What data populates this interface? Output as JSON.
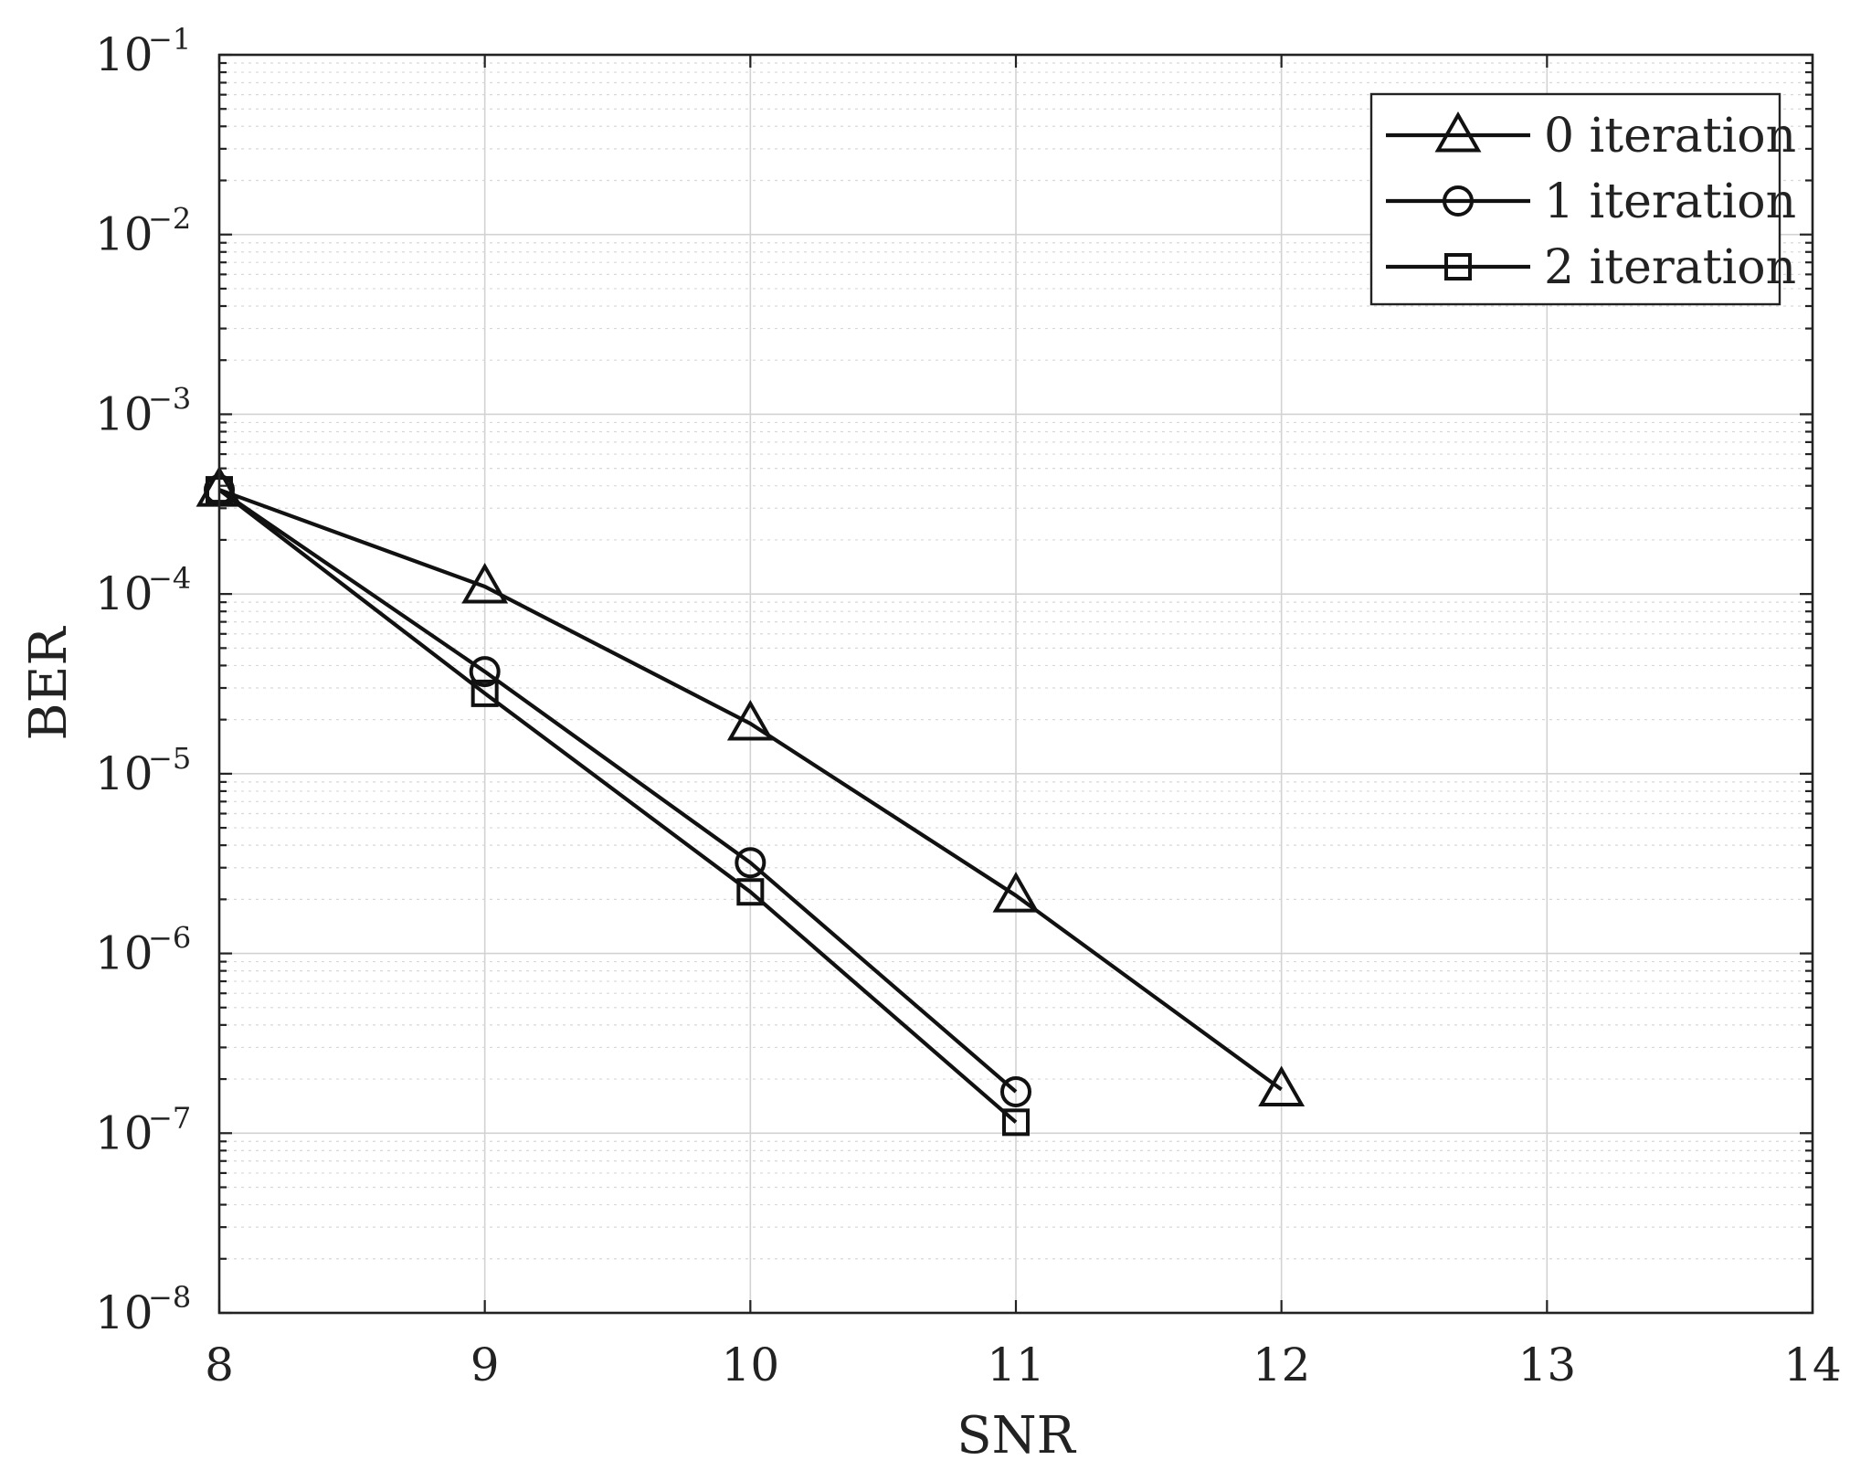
{
  "chart_data": {
    "type": "line",
    "xlabel": "SNR",
    "ylabel": "BER",
    "xlim": [
      8,
      14
    ],
    "ylim": [
      1e-08,
      0.1
    ],
    "yscale": "log",
    "grid": true,
    "minor_grid": true,
    "legend_position": "top-right",
    "x_ticks": [
      "8",
      "9",
      "10",
      "11",
      "12",
      "13",
      "14"
    ],
    "y_ticks": [
      {
        "base": "10",
        "exp": "−8"
      },
      {
        "base": "10",
        "exp": "−7"
      },
      {
        "base": "10",
        "exp": "−6"
      },
      {
        "base": "10",
        "exp": "−5"
      },
      {
        "base": "10",
        "exp": "−4"
      },
      {
        "base": "10",
        "exp": "−3"
      },
      {
        "base": "10",
        "exp": "−2"
      },
      {
        "base": "10",
        "exp": "−1"
      }
    ],
    "series": [
      {
        "name": "0 iteration",
        "marker": "triangle",
        "x": [
          8,
          9,
          10,
          11,
          12
        ],
        "values": [
          0.00038,
          0.00011,
          1.9e-05,
          2.1e-06,
          1.75e-07
        ]
      },
      {
        "name": "1 iteration",
        "marker": "circle",
        "x": [
          8,
          9,
          10,
          11
        ],
        "values": [
          0.00038,
          3.7e-05,
          3.2e-06,
          1.7e-07
        ]
      },
      {
        "name": "2 iteration",
        "marker": "square",
        "x": [
          8,
          9,
          10,
          11
        ],
        "values": [
          0.00038,
          2.8e-05,
          2.2e-06,
          1.15e-07
        ]
      }
    ]
  }
}
